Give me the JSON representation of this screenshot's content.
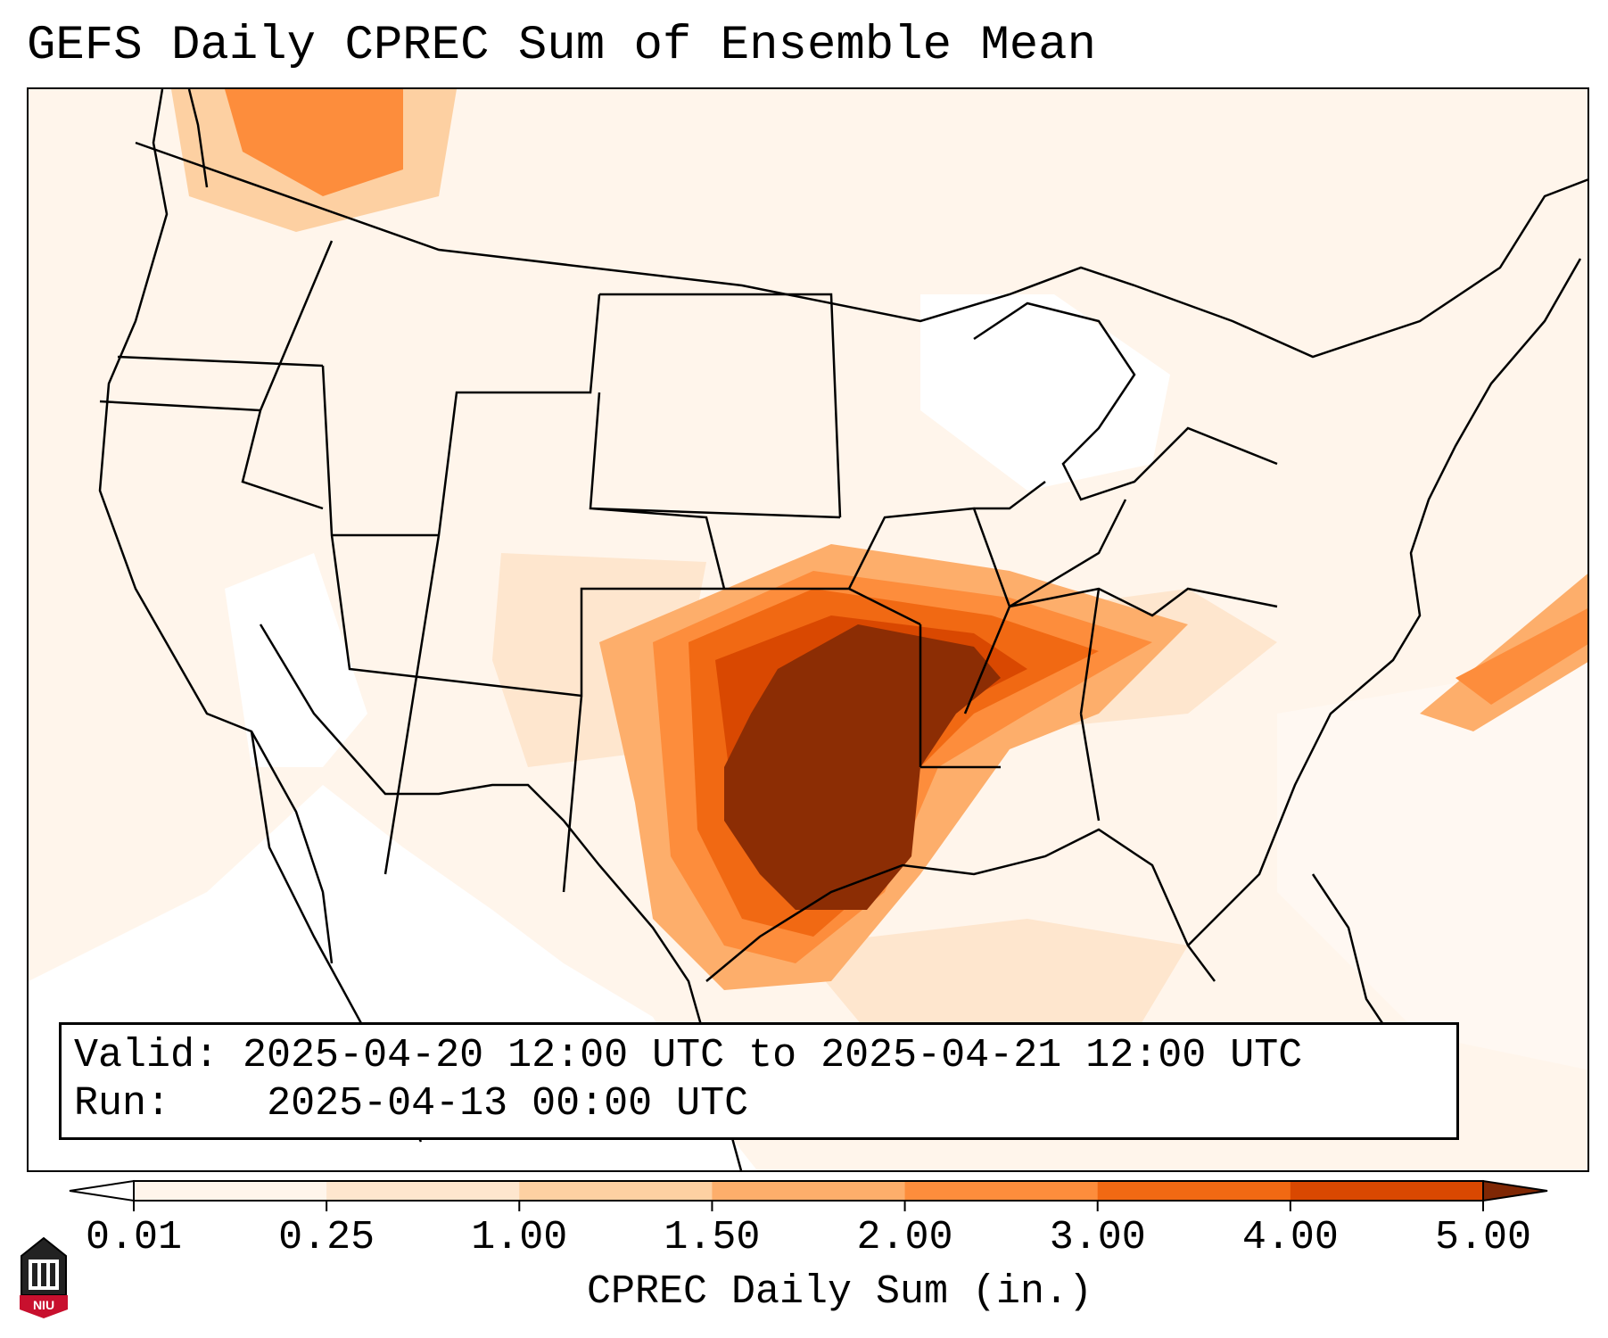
{
  "title": "GEFS Daily CPREC Sum of Ensemble Mean",
  "info_box": {
    "valid_label": "Valid:",
    "valid_value": "2025-04-20 12:00 UTC to 2025-04-21 12:00 UTC",
    "run_label": "Run:",
    "run_value": "2025-04-13 00:00 UTC"
  },
  "colorbar": {
    "label": "CPREC Daily Sum (in.)",
    "ticks": [
      "0.01",
      "0.25",
      "1.00",
      "1.50",
      "2.00",
      "3.00",
      "4.00",
      "5.00"
    ],
    "colors": [
      "#fff5eb",
      "#fee6ce",
      "#fdd0a2",
      "#fdae6b",
      "#fd8d3c",
      "#f16913",
      "#d94801",
      "#8c2d04"
    ],
    "under_color": "#ffffff",
    "over_color": "#7f2704",
    "extend": "both"
  },
  "logo": {
    "text": "NIU",
    "accent": "#c8102e"
  }
}
